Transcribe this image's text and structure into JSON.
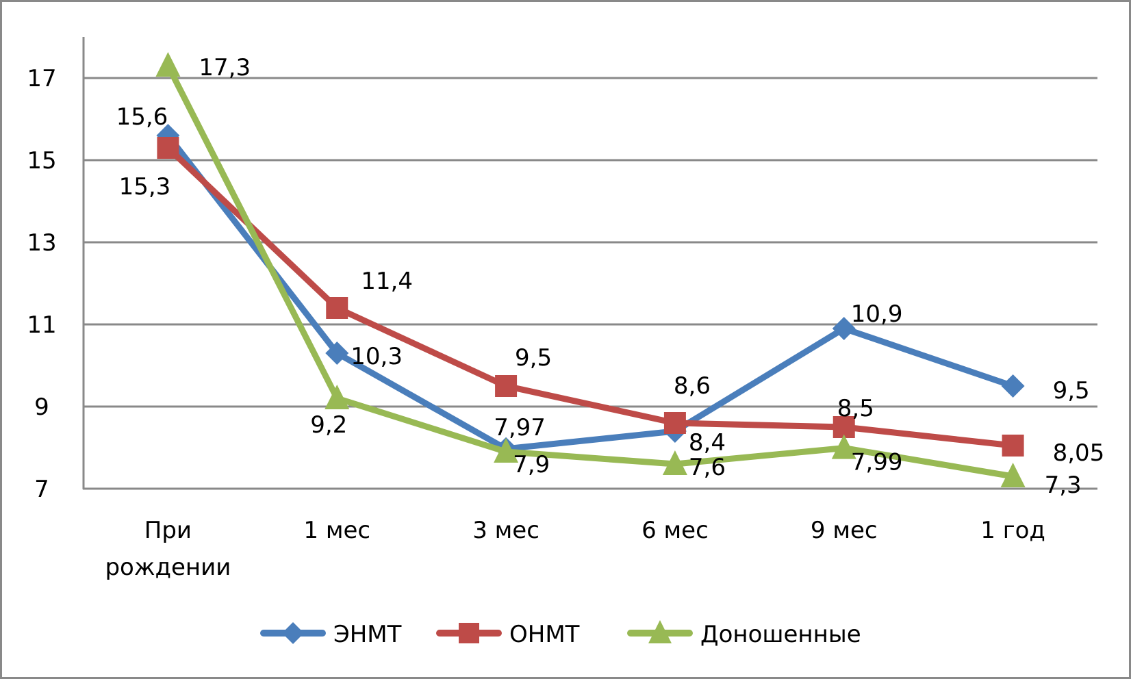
{
  "chart_data": {
    "type": "line",
    "title": "",
    "xlabel": "",
    "ylabel": "",
    "categories": [
      "При рождении",
      "1 мес",
      "3 мес",
      "6 мес",
      "9 мес",
      "1 год"
    ],
    "category_lines": [
      [
        "При",
        "рождении"
      ],
      [
        "1 мес"
      ],
      [
        "3 мес"
      ],
      [
        "6 мес"
      ],
      [
        "9 мес"
      ],
      [
        "1 год"
      ]
    ],
    "ylim": [
      7,
      18
    ],
    "yticks": [
      7,
      9,
      11,
      13,
      15,
      17
    ],
    "grid": true,
    "legend_position": "bottom",
    "series": [
      {
        "name": "ЭНМТ",
        "color": "#4a7ebb",
        "marker": "diamond",
        "values": [
          15.6,
          10.3,
          7.97,
          8.4,
          10.9,
          9.5
        ],
        "labels": [
          "15,6",
          "10,3",
          "7,97",
          "8,4",
          "10,9",
          "9,5"
        ]
      },
      {
        "name": "ОНМТ",
        "color": "#be4b48",
        "marker": "square",
        "values": [
          15.3,
          11.4,
          9.5,
          8.6,
          8.5,
          8.05
        ],
        "labels": [
          "15,3",
          "11,4",
          "9,5",
          "8,6",
          "8,5",
          "8,05"
        ]
      },
      {
        "name": "Доношенные",
        "color": "#98b954",
        "marker": "triangle",
        "values": [
          17.3,
          9.2,
          7.9,
          7.6,
          7.99,
          7.3
        ],
        "labels": [
          "17,3",
          "9,2",
          "7,9",
          "7,6",
          "7,99",
          "7,3"
        ]
      }
    ]
  },
  "legend": {
    "items": [
      "ЭНМТ",
      "ОНМТ",
      "Доношенные"
    ]
  }
}
